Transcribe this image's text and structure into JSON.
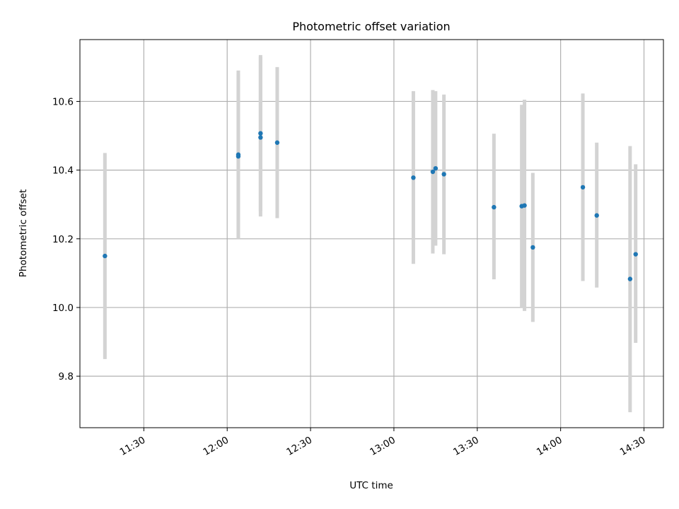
{
  "chart_data": {
    "type": "scatter",
    "title": "Photometric offset variation",
    "xlabel": "UTC time",
    "ylabel": "Photometric offset",
    "x_axis_kind": "time",
    "x_tick_labels": [
      "11:30",
      "12:00",
      "12:30",
      "13:00",
      "13:30",
      "14:00",
      "14:30"
    ],
    "x_tick_values": [
      "11:30",
      "12:00",
      "12:30",
      "13:00",
      "13:30",
      "14:00",
      "14:30"
    ],
    "xlim": [
      "11:07",
      "14:37"
    ],
    "y_ticks": [
      9.8,
      10.0,
      10.2,
      10.4,
      10.6
    ],
    "y_tick_labels": [
      "9.8",
      "10.0",
      "10.2",
      "10.4",
      "10.6"
    ],
    "ylim": [
      9.65,
      10.78
    ],
    "grid": true,
    "colors": {
      "points": "#1f77b4",
      "errorbars": "#d3d3d3",
      "grid": "#b0b0b0"
    },
    "series": [
      {
        "points": [
          {
            "x": "11:16",
            "y": 10.15,
            "ymin": 9.85,
            "ymax": 10.45
          },
          {
            "x": "12:04",
            "y": 10.445,
            "ymin": 10.2,
            "ymax": 10.69
          },
          {
            "x": "12:04",
            "y": 10.44,
            "ymin": 10.2,
            "ymax": 10.68
          },
          {
            "x": "12:12",
            "y": 10.495,
            "ymin": 10.265,
            "ymax": 10.735
          },
          {
            "x": "12:12",
            "y": 10.507,
            "ymin": 10.28,
            "ymax": 10.73
          },
          {
            "x": "12:18",
            "y": 10.48,
            "ymin": 10.26,
            "ymax": 10.7
          },
          {
            "x": "13:07",
            "y": 10.378,
            "ymin": 10.127,
            "ymax": 10.63
          },
          {
            "x": "13:14",
            "y": 10.395,
            "ymin": 10.157,
            "ymax": 10.633
          },
          {
            "x": "13:15",
            "y": 10.405,
            "ymin": 10.18,
            "ymax": 10.63
          },
          {
            "x": "13:18",
            "y": 10.388,
            "ymin": 10.155,
            "ymax": 10.62
          },
          {
            "x": "13:36",
            "y": 10.292,
            "ymin": 10.082,
            "ymax": 10.506
          },
          {
            "x": "13:46",
            "y": 10.295,
            "ymin": 10.0,
            "ymax": 10.59
          },
          {
            "x": "13:47",
            "y": 10.297,
            "ymin": 9.99,
            "ymax": 10.605
          },
          {
            "x": "13:50",
            "y": 10.175,
            "ymin": 9.958,
            "ymax": 10.392
          },
          {
            "x": "14:08",
            "y": 10.35,
            "ymin": 10.077,
            "ymax": 10.623
          },
          {
            "x": "14:13",
            "y": 10.268,
            "ymin": 10.058,
            "ymax": 10.48
          },
          {
            "x": "14:25",
            "y": 10.083,
            "ymin": 9.695,
            "ymax": 10.47
          },
          {
            "x": "14:27",
            "y": 10.155,
            "ymin": 9.897,
            "ymax": 10.417
          }
        ]
      }
    ]
  }
}
